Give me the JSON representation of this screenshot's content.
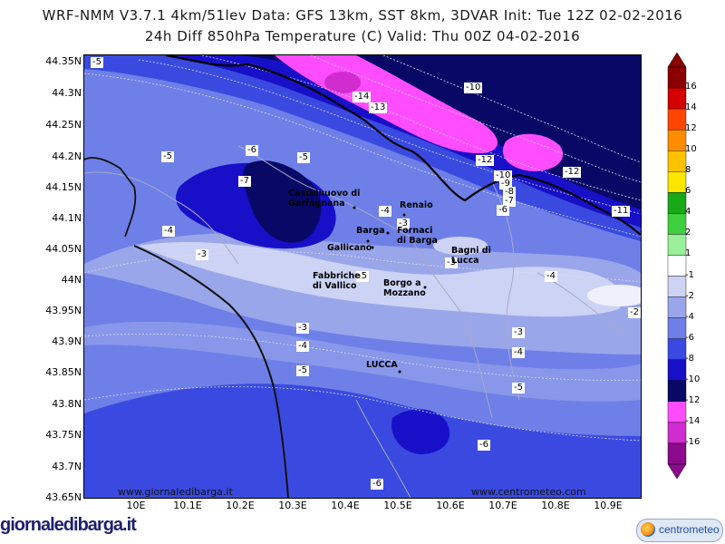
{
  "header": {
    "line1": "WRF-NMM V3.7.1 4km/51lev  Data: GFS 13km, SST 8km, 3DVAR  Init: Tue 12Z 02-02-2016",
    "line2": "24h Diff 850hPa Temperature (C)  Valid: Thu 00Z 04-02-2016"
  },
  "lat_ticks": [
    "44.35N",
    "44.3N",
    "44.25N",
    "44.2N",
    "44.15N",
    "44.1N",
    "44.05N",
    "44N",
    "43.95N",
    "43.9N",
    "43.85N",
    "43.8N",
    "43.75N",
    "43.7N",
    "43.65N"
  ],
  "lon_ticks": [
    "10E",
    "10.1E",
    "10.2E",
    "10.3E",
    "10.4E",
    "10.5E",
    "10.6E",
    "10.7E",
    "10.8E",
    "10.9E"
  ],
  "colorbar": {
    "labels": [
      "16",
      "14",
      "12",
      "10",
      "8",
      "6",
      "4",
      "2",
      "1",
      "-1",
      "-2",
      "-4",
      "-6",
      "-8",
      "-10",
      "-12",
      "-14",
      "-16"
    ],
    "colors": [
      "#8b0000",
      "#d50000",
      "#ff4500",
      "#ff8c00",
      "#ffc200",
      "#ffe600",
      "#18a818",
      "#3ecf3e",
      "#98f098",
      "#ffffff",
      "#cdd3f5",
      "#9aa6ea",
      "#6e7fe8",
      "#3a4ae0",
      "#1810c8",
      "#080866",
      "#ff4cff",
      "#d02cd0",
      "#8c0a8c"
    ]
  },
  "contour_labels": [
    "-5",
    "-14",
    "-13",
    "-10",
    "-12",
    "-12",
    "-10",
    "-9",
    "-8",
    "-7",
    "-6",
    "-11",
    "-5",
    "-6",
    "-7",
    "-5",
    "-4",
    "-3",
    "-4",
    "-5",
    "-3",
    "-3",
    "-4",
    "-5",
    "-3",
    "-4",
    "-3",
    "-4",
    "-5",
    "-6",
    "-6",
    "-2"
  ],
  "places": [
    "Castelnuovo di Garfagnana",
    "Renaio",
    "Barga",
    "Fornaci di Barga",
    "Gallicano",
    "Bagni di Lucca",
    "Fabbriche di Vallico",
    "Borgo a Mozzano",
    "LUCCA"
  ],
  "watermark": {
    "brand": "giornaledibarga.it",
    "web_left": "www.giornaledibarga.it",
    "web_right": "www.centrometeo.com",
    "logo": "centrometeo"
  },
  "colors": {
    "background": "#ffffff",
    "coast": "#111111",
    "region_border": "#000000"
  }
}
